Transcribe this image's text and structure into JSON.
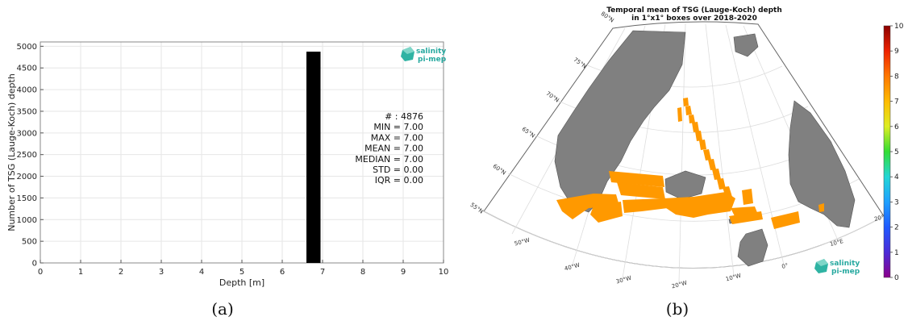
{
  "chart_data": [
    {
      "type": "bar",
      "panel_label": "(a)",
      "xlabel": "Depth [m]",
      "ylabel": "Number of TSG (Lauge-Koch) depth",
      "xlim": [
        0,
        10
      ],
      "ylim": [
        0,
        5100
      ],
      "x_ticks": [
        "0",
        "1",
        "2",
        "3",
        "4",
        "5",
        "6",
        "7",
        "8",
        "9",
        "10"
      ],
      "y_ticks": [
        "0",
        "500",
        "1000",
        "1500",
        "2000",
        "2500",
        "3000",
        "3500",
        "4000",
        "4500",
        "5000"
      ],
      "grid": true,
      "bars": [
        {
          "x_start": 6.6,
          "x_end": 6.95,
          "value": 4876
        }
      ],
      "bar_color": "#000000",
      "stats": [
        "# : 4876",
        "MIN = 7.00",
        "MAX =  7.00",
        "MEAN = 7.00",
        "MEDIAN = 7.00",
        "STD = 0.00",
        "IQR = 0.00"
      ],
      "logo": [
        "salinity",
        "pi-mep"
      ]
    },
    {
      "type": "heatmap",
      "panel_label": "(b)",
      "title_line1": "Temporal mean of TSG (Lauge-Koch) depth",
      "title_line2": "in 1°x1° boxes over 2018-2020",
      "lat_labels": [
        "55°N",
        "60°N",
        "65°N",
        "70°N",
        "75°N",
        "80°N"
      ],
      "lon_labels": [
        "50°W",
        "40°W",
        "30°W",
        "20°W",
        "10°W",
        "0°",
        "10°E",
        "20°E"
      ],
      "colorbar": {
        "min": 0,
        "max": 10,
        "ticks": [
          "0",
          "1",
          "2",
          "3",
          "4",
          "5",
          "6",
          "7",
          "8",
          "9",
          "10"
        ]
      },
      "cell_value": 7,
      "cell_color": "#ff9900",
      "land_color": "#808080",
      "logo": [
        "salinity",
        "pi-mep"
      ]
    }
  ]
}
